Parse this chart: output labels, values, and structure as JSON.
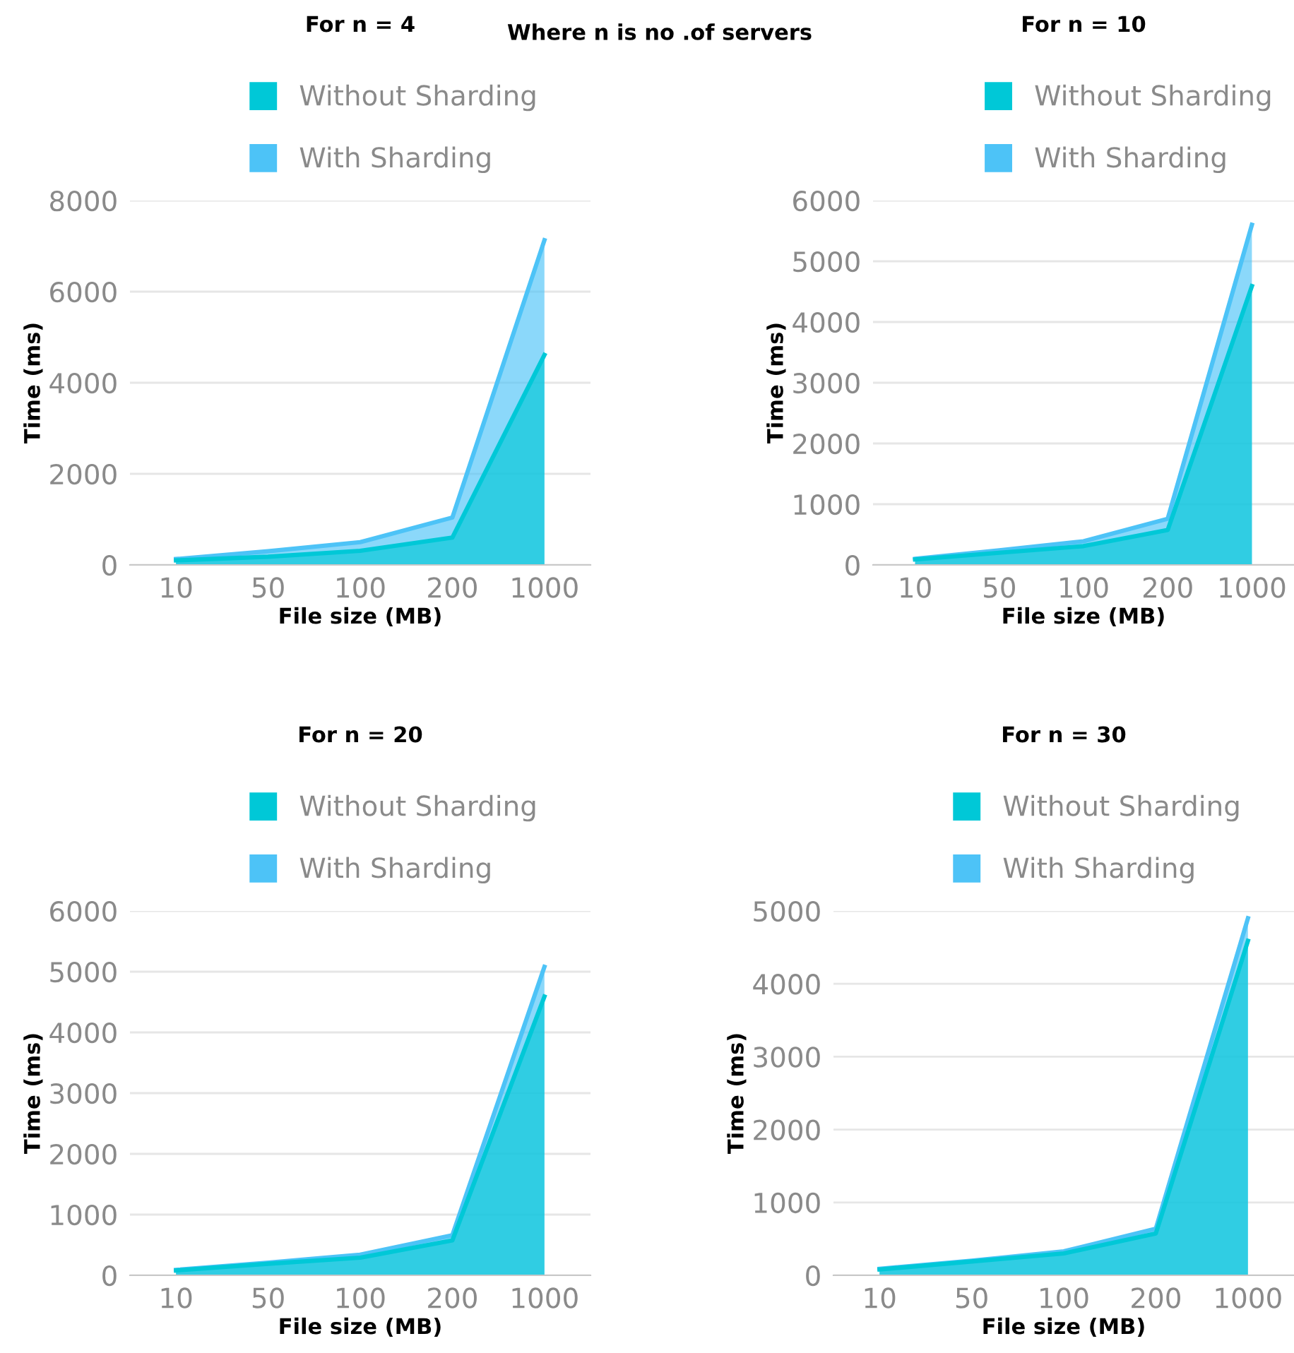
{
  "chart_data": [
    {
      "type": "area",
      "title": "For n = 4",
      "xlabel": "File size (MB)",
      "ylabel": "Time (ms)",
      "annotations": [
        "Where n is no .of servers"
      ],
      "categories": [
        "10",
        "50",
        "100",
        "200",
        "1000"
      ],
      "series": [
        {
          "name": "Without Sharding",
          "color": "#00c8d7",
          "values": [
            100,
            180,
            310,
            600,
            4610
          ]
        },
        {
          "name": "With Sharding",
          "color": "#4dc3f7",
          "values": [
            130,
            300,
            500,
            1040,
            7130
          ]
        }
      ],
      "ylim": [
        0,
        8000
      ],
      "yticks": [
        0,
        2000,
        4000,
        6000,
        8000
      ],
      "grid": "y",
      "legend": "top"
    },
    {
      "type": "area",
      "title": "For n = 10",
      "xlabel": "File size (MB)",
      "ylabel": "Time (ms)",
      "categories": [
        "10",
        "50",
        "100",
        "200",
        "1000"
      ],
      "series": [
        {
          "name": "Without Sharding",
          "color": "#00c8d7",
          "values": [
            90,
            200,
            310,
            575,
            4590
          ]
        },
        {
          "name": "With Sharding",
          "color": "#4dc3f7",
          "values": [
            100,
            240,
            390,
            760,
            5600
          ]
        }
      ],
      "ylim": [
        0,
        6000
      ],
      "yticks": [
        0,
        1000,
        2000,
        3000,
        4000,
        5000,
        6000
      ],
      "grid": "y",
      "legend": "top"
    },
    {
      "type": "area",
      "title": "For n = 20",
      "xlabel": "File size (MB)",
      "ylabel": "Time (ms)",
      "categories": [
        "10",
        "50",
        "100",
        "200",
        "1000"
      ],
      "series": [
        {
          "name": "Without Sharding",
          "color": "#00c8d7",
          "values": [
            80,
            190,
            290,
            575,
            4590
          ]
        },
        {
          "name": "With Sharding",
          "color": "#4dc3f7",
          "values": [
            90,
            210,
            340,
            660,
            5080
          ]
        }
      ],
      "ylim": [
        0,
        6000
      ],
      "yticks": [
        0,
        1000,
        2000,
        3000,
        4000,
        5000,
        6000
      ],
      "grid": "y",
      "legend": "top"
    },
    {
      "type": "area",
      "title": "For n = 30",
      "xlabel": "File size (MB)",
      "ylabel": "Time (ms)",
      "categories": [
        "10",
        "50",
        "100",
        "200",
        "1000"
      ],
      "series": [
        {
          "name": "Without Sharding",
          "color": "#00c8d7",
          "values": [
            80,
            190,
            300,
            575,
            4590
          ]
        },
        {
          "name": "With Sharding",
          "color": "#4dc3f7",
          "values": [
            90,
            200,
            330,
            640,
            4900
          ]
        }
      ],
      "ylim": [
        0,
        5000
      ],
      "yticks": [
        0,
        1000,
        2000,
        3000,
        4000,
        5000
      ],
      "grid": "y",
      "legend": "top"
    }
  ]
}
